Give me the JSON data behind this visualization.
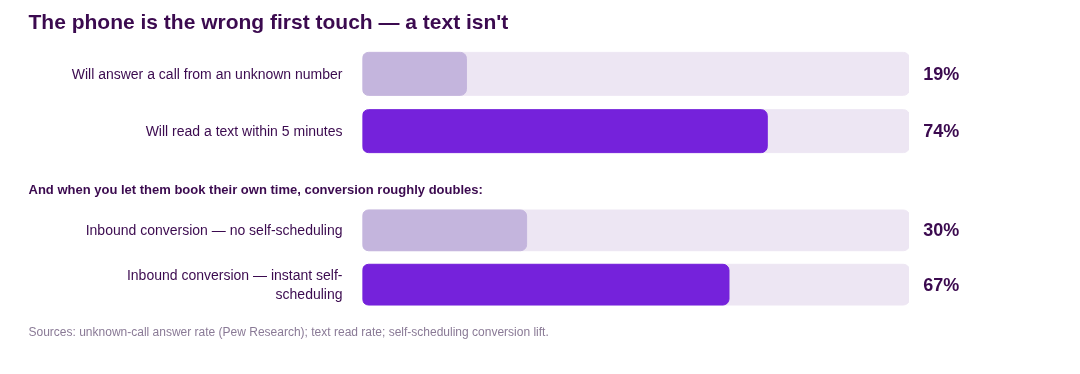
{
  "chart_data": [
    {
      "type": "bar",
      "orientation": "horizontal",
      "title": "The phone is the wrong first touch — a text isn't",
      "categories": [
        "Will answer a call from an unknown number",
        "Will read a text within 5 minutes"
      ],
      "values": [
        19,
        74
      ],
      "value_labels": [
        "19%",
        "74%"
      ],
      "colors": [
        "#c4b5dd",
        "#7522db"
      ],
      "xlim": [
        0,
        100
      ],
      "tick_labels": "y",
      "grid": false
    },
    {
      "type": "bar",
      "orientation": "horizontal",
      "title": "And when you let them book their own time, conversion roughly doubles:",
      "categories": [
        "Inbound conversion — no self-scheduling",
        "Inbound conversion — instant self-scheduling"
      ],
      "values": [
        30,
        67
      ],
      "value_labels": [
        "30%",
        "67%"
      ],
      "colors": [
        "#c4b5dd",
        "#7522db"
      ],
      "xlim": [
        0,
        100
      ],
      "tick_labels": "y",
      "grid": false,
      "annotations": [
        "Sources: unknown-call answer rate (Pew Research); text read rate; self-scheduling conversion lift."
      ]
    }
  ]
}
